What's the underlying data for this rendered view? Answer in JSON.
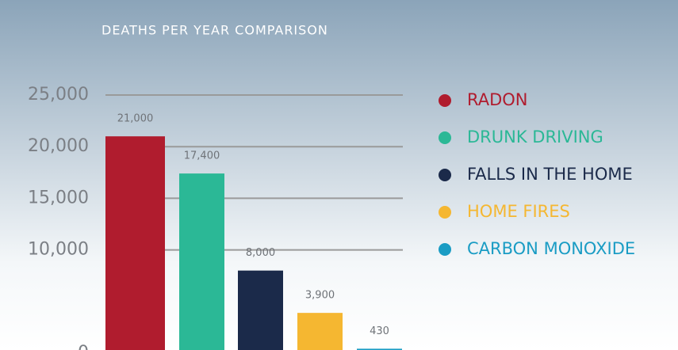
{
  "chart_data": {
    "type": "bar",
    "title": "DEATHS PER YEAR COMPARISON",
    "series": [
      {
        "name": "RADON",
        "color": "#b01c2e",
        "values": [
          21000
        ],
        "value_labels": [
          "21,000"
        ]
      },
      {
        "name": "DRUNK DRIVING",
        "color": "#2bb896",
        "values": [
          17400
        ],
        "value_labels": [
          "17,400"
        ]
      },
      {
        "name": "FALLS IN THE HOME",
        "color": "#1b2a4a",
        "values": [
          8000
        ],
        "value_labels": [
          "8,000"
        ]
      },
      {
        "name": "HOME FIRES",
        "color": "#f5b731",
        "values": [
          3900
        ],
        "value_labels": [
          "3,900"
        ]
      },
      {
        "name": "CARBON MONOXIDE",
        "color": "#1a9cc4",
        "values": [
          430
        ],
        "value_labels": [
          "430"
        ]
      }
    ],
    "ylim": [
      0,
      25000
    ],
    "yticks": [
      0,
      {
        "value": 10000,
        "label": "10,000"
      },
      {
        "value": 15000,
        "label": "15,000"
      },
      {
        "value": 20000,
        "label": "20,000"
      },
      {
        "value": 25000,
        "label": "25,000"
      }
    ],
    "grid": true,
    "legend": "right"
  }
}
